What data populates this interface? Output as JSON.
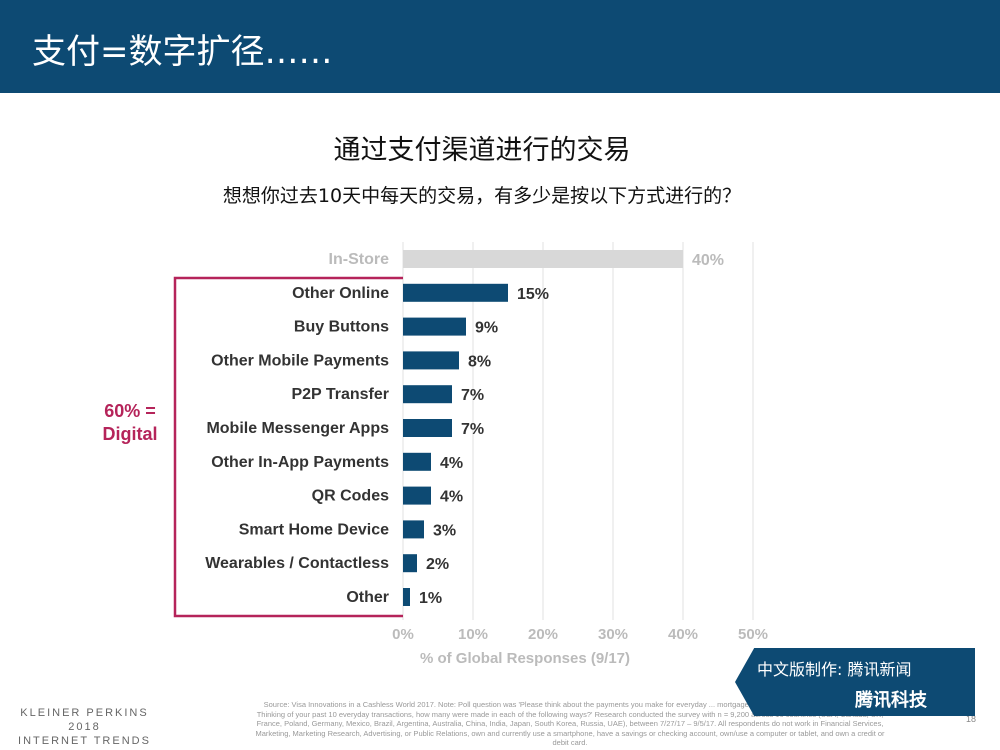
{
  "header": {
    "title": "支付=数字扩径……"
  },
  "slide": {
    "title": "通过支付渠道进行的交易",
    "subtitle": "想想你过去10天中每天的交易，有多少是按以下方式进行的？",
    "digital_label_1": "60% =",
    "digital_label_2": "Digital"
  },
  "chart_data": {
    "type": "bar",
    "orientation": "horizontal",
    "categories": [
      "In-Store",
      "Other Online",
      "Buy Buttons",
      "Other Mobile Payments",
      "P2P Transfer",
      "Mobile Messenger Apps",
      "Other In-App Payments",
      "QR Codes",
      "Smart Home Device",
      "Wearables / Contactless",
      "Other"
    ],
    "values": [
      40,
      15,
      9,
      8,
      7,
      7,
      4,
      4,
      3,
      2,
      1
    ],
    "value_labels": [
      "40%",
      "15%",
      "9%",
      "8%",
      "7%",
      "7%",
      "4%",
      "4%",
      "3%",
      "2%",
      "1%"
    ],
    "xlabel": "% of Global Responses (9/17)",
    "xlim": [
      0,
      50
    ],
    "ticks": [
      "0%",
      "10%",
      "20%",
      "30%",
      "40%",
      "50%"
    ],
    "grid": true,
    "colors": {
      "highlight": "#d8d8d8",
      "digital": "#0d4a73",
      "bracket": "#b5245a"
    }
  },
  "footer": {
    "brand_1": "KLEINER PERKINS",
    "brand_2": "2018",
    "brand_3": "INTERNET TRENDS",
    "source": "Source: Visa Innovations in a Cashless World 2017. Note: Poll question was 'Please think about the payments you make for everyday ... mortgage, or other larger, infrequent payments). Thinking of your past 10 everyday transactions, how many were made in each of the following ways?' Research conducted the survey with n = 9,200 across 16 countries (USA, Canada, UK, France, Poland, Germany, Mexico, Brazil, Argentina, Australia, China, India, Japan, South Korea, Russia, UAE), between 7/27/17 – 9/5/17. All respondents do not work in Financial Services, Marketing, Marketing Research, Advertising, or Public Relations, own and currently use a smartphone, have a savings or checking account, own/use a computer or tablet, and own a credit or debit card.",
    "page": "18"
  },
  "badge": {
    "line1": "中文版制作: 腾讯新闻",
    "line2": "腾讯科技"
  }
}
